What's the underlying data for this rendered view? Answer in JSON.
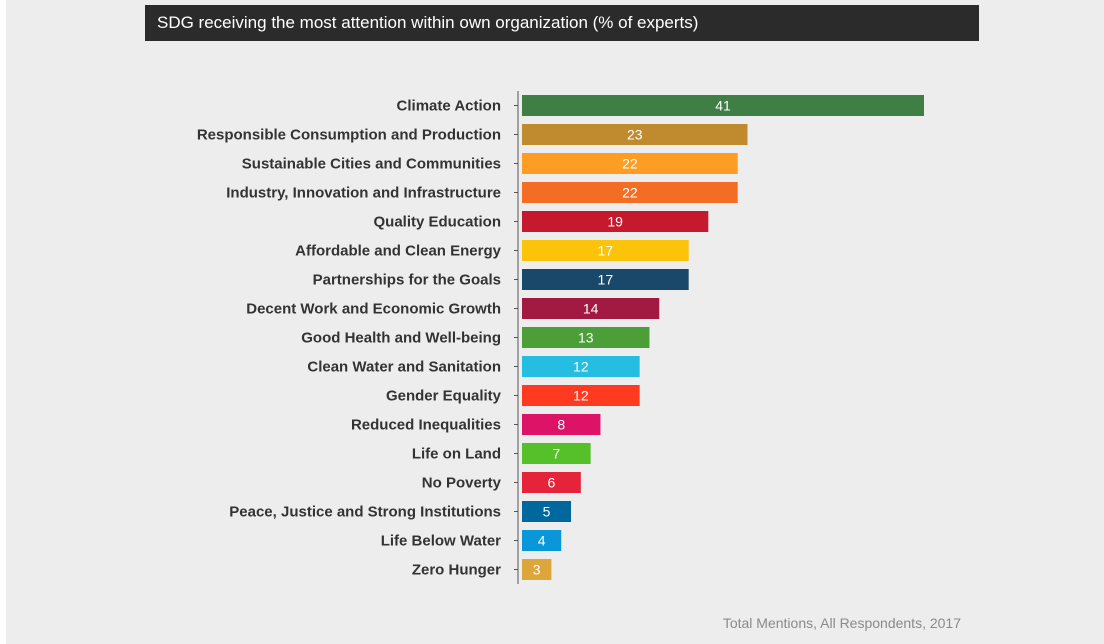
{
  "title": "SDG receiving the most attention within own organization (% of experts)",
  "footnote": "Total Mentions, All Respondents, 2017",
  "chart_data": {
    "type": "bar",
    "orientation": "horizontal",
    "title": "SDG receiving the most attention within own organization (% of experts)",
    "xlabel": "",
    "ylabel": "",
    "xlim": [
      0,
      41
    ],
    "grid": false,
    "categories": [
      "Climate Action",
      "Responsible Consumption and Production",
      "Sustainable Cities and Communities",
      "Industry, Innovation and Infrastructure",
      "Quality Education",
      "Affordable and Clean Energy",
      "Partnerships for the Goals",
      "Decent Work and Economic Growth",
      "Good Health and Well-being",
      "Clean Water and Sanitation",
      "Gender Equality",
      "Reduced Inequalities",
      "Life on Land",
      "No Poverty",
      "Peace, Justice and Strong Institutions",
      "Life Below Water",
      "Zero Hunger"
    ],
    "values": [
      41,
      23,
      22,
      22,
      19,
      17,
      17,
      14,
      13,
      12,
      12,
      8,
      7,
      6,
      5,
      4,
      3
    ],
    "colors": [
      "#3f7e44",
      "#bf8b2e",
      "#fd9d24",
      "#f36d25",
      "#c5192d",
      "#fcc30b",
      "#19486a",
      "#a21942",
      "#4c9f38",
      "#26bde2",
      "#ff3a21",
      "#dd1367",
      "#56c02b",
      "#e5243b",
      "#00689d",
      "#0a97d9",
      "#dda63a"
    ]
  }
}
